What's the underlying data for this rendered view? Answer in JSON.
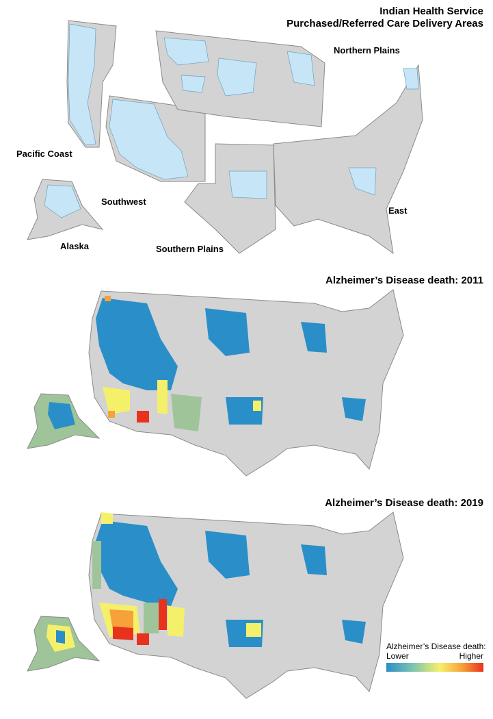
{
  "panel1": {
    "title_line1": "Indian Health Service",
    "title_line2": "Purchased/Referred Care Delivery Areas",
    "regions": {
      "northern_plains": "Northern Plains",
      "pacific_coast": "Pacific Coast",
      "southwest": "Southwest",
      "alaska": "Alaska",
      "southern_plains": "Southern Plains",
      "east": "East"
    }
  },
  "panel2": {
    "title": "Alzheimer’s Disease death: 2011"
  },
  "panel3": {
    "title": "Alzheimer’s Disease death: 2019"
  },
  "legend": {
    "title": "Alzheimer’s Disease death:",
    "low": "Lower",
    "high": "Higher"
  },
  "colors": {
    "land": "#d3d3d3",
    "border": "#8a8a8a",
    "prcda": "#c6e6f7",
    "lower": "#2a8fc8",
    "low_mid": "#9fc49a",
    "mid": "#f5f06a",
    "mid_high": "#f7a13a",
    "higher": "#e8321e"
  }
}
